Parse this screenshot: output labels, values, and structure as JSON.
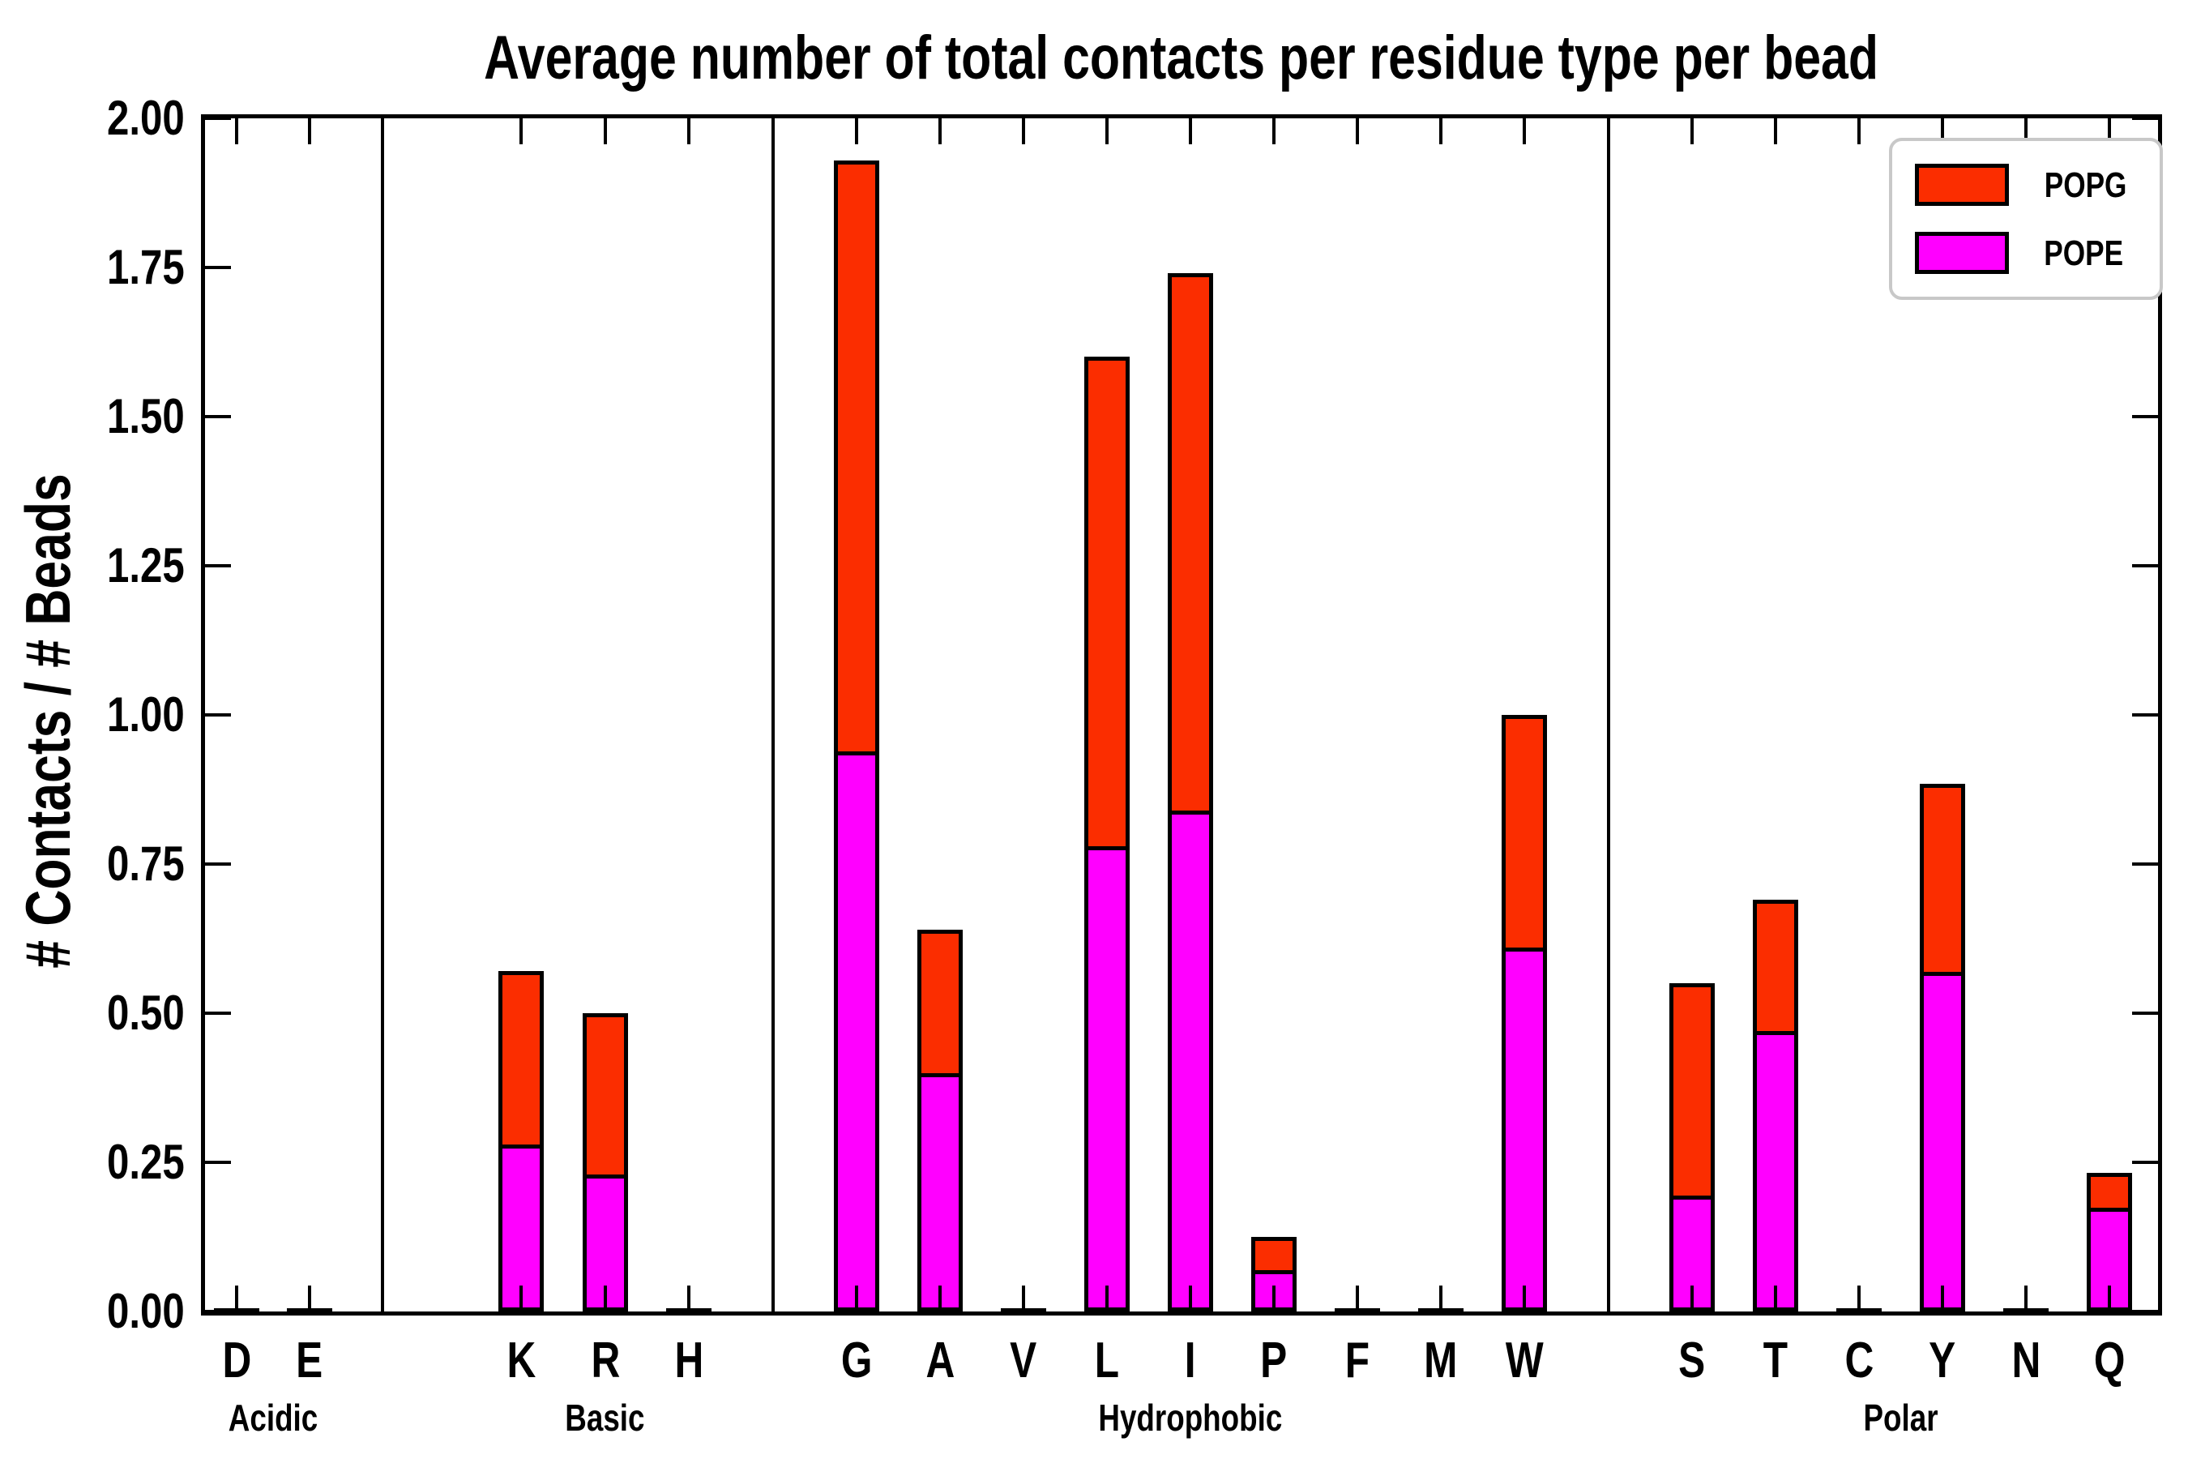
{
  "page": {
    "background": "#ffffff"
  },
  "chart_data": {
    "type": "bar",
    "stacked": true,
    "title": "Average number of total contacts per residue type per bead",
    "ylabel": "# Contacts / # Beads",
    "xlabel": "",
    "ylim": [
      0,
      2
    ],
    "ytick_step": 0.25,
    "ytick_labels": [
      "0.00",
      "0.25",
      "0.50",
      "0.75",
      "1.00",
      "1.25",
      "1.50",
      "1.75",
      "2.00"
    ],
    "grid": false,
    "categories": [
      "D",
      "E",
      "K",
      "R",
      "H",
      "G",
      "A",
      "V",
      "L",
      "I",
      "P",
      "F",
      "M",
      "W",
      "S",
      "T",
      "C",
      "Y",
      "N",
      "Q"
    ],
    "groups": [
      {
        "label": "Acidic",
        "categories": [
          "D",
          "E"
        ]
      },
      {
        "label": "Basic",
        "categories": [
          "K",
          "R",
          "H"
        ]
      },
      {
        "label": "Hydrophobic",
        "categories": [
          "G",
          "A",
          "V",
          "L",
          "I",
          "P",
          "F",
          "M",
          "W"
        ]
      },
      {
        "label": "Polar",
        "categories": [
          "S",
          "T",
          "C",
          "Y",
          "N",
          "Q"
        ]
      }
    ],
    "series": [
      {
        "name": "POPG",
        "color": "#fb2d00",
        "values": [
          0,
          0,
          0.3,
          0.28,
          0,
          1.0,
          0.25,
          0,
          0.83,
          0.91,
          0.065,
          0,
          0,
          0.4,
          0.365,
          0.23,
          0,
          0.325,
          0,
          0.068
        ]
      },
      {
        "name": "POPE",
        "color": "#ff00ff",
        "values": [
          0,
          0,
          0.27,
          0.22,
          0,
          0.93,
          0.39,
          0,
          0.77,
          0.83,
          0.06,
          0,
          0,
          0.6,
          0.185,
          0.46,
          0,
          0.56,
          0,
          0.165
        ]
      }
    ],
    "stacked_totals": [
      0,
      0,
      0.57,
      0.5,
      0,
      1.93,
      0.64,
      0,
      1.6,
      1.74,
      0.125,
      0,
      0,
      1.0,
      0.55,
      0.69,
      0,
      0.885,
      0,
      0.233
    ],
    "legend": {
      "position": "upper right",
      "entries": [
        "POPG",
        "POPE"
      ]
    },
    "colors": {
      "bar_edge": "#000000",
      "axis": "#000000",
      "legend_border": "#c8c8c8"
    }
  }
}
